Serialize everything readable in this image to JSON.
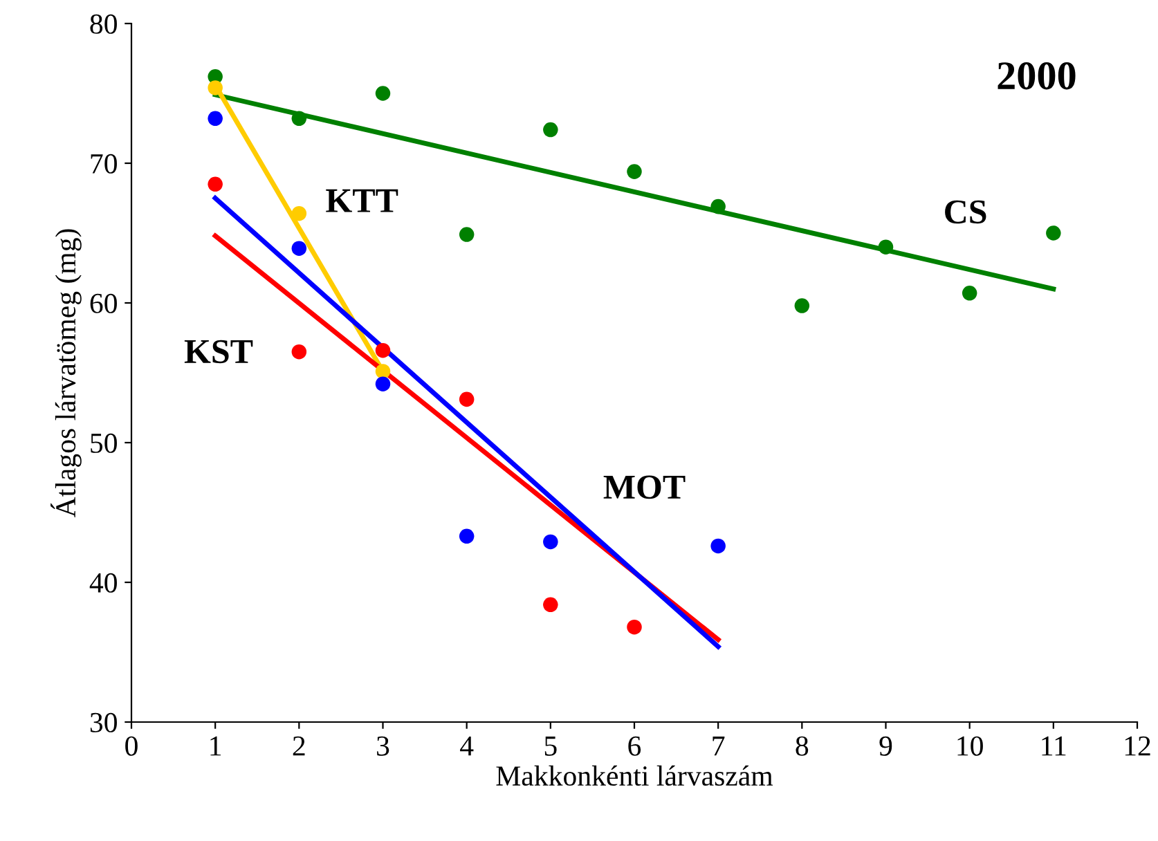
{
  "chart_data": {
    "type": "scatter",
    "xlabel": "Makkonkénti lárvaszám",
    "ylabel": "Átlagos lárvatömeg (mg)",
    "annotations": [
      "2000"
    ],
    "xlim": [
      0,
      12
    ],
    "ylim": [
      30,
      80
    ],
    "xticks": [
      0,
      1,
      2,
      3,
      4,
      5,
      6,
      7,
      8,
      9,
      10,
      11,
      12
    ],
    "yticks": [
      30,
      40,
      50,
      60,
      70,
      80
    ],
    "grid": false,
    "legend": false,
    "marker": "circle",
    "series": [
      {
        "name": "CS",
        "color": "#008000",
        "x": [
          1,
          2,
          3,
          4,
          5,
          6,
          7,
          8,
          9,
          10,
          11
        ],
        "values": [
          76.2,
          73.2,
          75.0,
          64.9,
          72.4,
          69.4,
          66.9,
          59.8,
          64.0,
          60.7,
          65.0
        ]
      },
      {
        "type": "line",
        "marker": "none",
        "color": "#008000",
        "x": [
          1,
          11
        ],
        "values": [
          74.9,
          61.0
        ]
      },
      {
        "name": "KTT",
        "color": "#ffcc00",
        "x": [
          1,
          2,
          3
        ],
        "values": [
          75.4,
          66.4,
          55.1
        ]
      },
      {
        "type": "line",
        "marker": "none",
        "color": "#ffcc00",
        "x": [
          1,
          3
        ],
        "values": [
          75.6,
          55.1
        ]
      },
      {
        "name": "KST",
        "color": "#ff0000",
        "x": [
          1,
          2,
          3,
          4,
          5,
          6
        ],
        "values": [
          68.5,
          56.5,
          56.6,
          53.1,
          38.4,
          36.8
        ]
      },
      {
        "type": "line",
        "marker": "none",
        "color": "#ff0000",
        "x": [
          1,
          7
        ],
        "values": [
          64.8,
          35.9
        ]
      },
      {
        "name": "MOT",
        "color": "#0000ff",
        "x": [
          1,
          2,
          3,
          4,
          5,
          7
        ],
        "values": [
          73.2,
          63.9,
          54.2,
          43.3,
          42.9,
          42.6
        ]
      },
      {
        "type": "line",
        "marker": "none",
        "color": "#0000ff",
        "x": [
          1,
          7
        ],
        "values": [
          67.5,
          35.4
        ]
      }
    ]
  }
}
